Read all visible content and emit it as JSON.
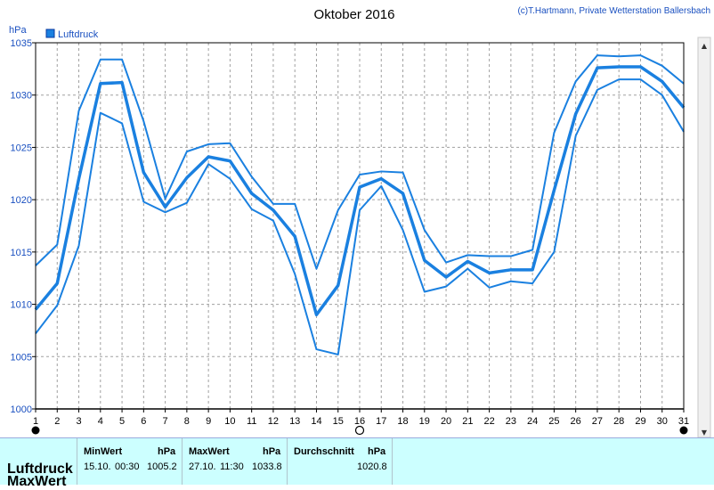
{
  "title": "Oktober 2016",
  "copyright": "(c)T.Hartmann, Private Wetterstation Ballersbach",
  "chart_data": {
    "type": "line",
    "ylabel": "hPa",
    "ylim": [
      1000,
      1035
    ],
    "yticks": [
      1000,
      1005,
      1010,
      1015,
      1020,
      1025,
      1030,
      1035
    ],
    "x": [
      1,
      2,
      3,
      4,
      5,
      6,
      7,
      8,
      9,
      10,
      11,
      12,
      13,
      14,
      15,
      16,
      17,
      18,
      19,
      20,
      21,
      22,
      23,
      24,
      25,
      26,
      27,
      28,
      29,
      30,
      31
    ],
    "legend": "Luftdruck",
    "legend_position": "top-left",
    "grid": true,
    "colors": {
      "line": "#1a80e0",
      "grid": "#a0a0a0",
      "axis_text": "#1a50c0"
    },
    "series": [
      {
        "name": "Luftdruck",
        "role": "max",
        "values": [
          1013.7,
          1015.7,
          1028.5,
          1033.4,
          1033.4,
          1027.5,
          1020.1,
          1024.6,
          1025.3,
          1025.4,
          1022.2,
          1019.6,
          1019.6,
          1013.4,
          1019.0,
          1022.4,
          1022.7,
          1022.6,
          1017.1,
          1014.0,
          1014.7,
          1014.6,
          1014.6,
          1015.2,
          1026.4,
          1031.3,
          1033.8,
          1033.7,
          1033.8,
          1032.8,
          1031.1
        ]
      },
      {
        "role": "mean",
        "values": [
          1009.5,
          1012.0,
          1022.0,
          1031.1,
          1031.2,
          1022.6,
          1019.3,
          1022.1,
          1024.1,
          1023.7,
          1020.6,
          1019.0,
          1016.5,
          1009.0,
          1011.8,
          1021.2,
          1022.0,
          1020.6,
          1014.2,
          1012.6,
          1014.1,
          1013.0,
          1013.3,
          1013.3,
          1020.9,
          1028.2,
          1032.6,
          1032.7,
          1032.7,
          1031.3,
          1028.8
        ]
      },
      {
        "role": "min",
        "values": [
          1007.2,
          1009.9,
          1015.6,
          1028.3,
          1027.3,
          1019.8,
          1018.8,
          1019.7,
          1023.4,
          1022.0,
          1019.1,
          1018.0,
          1012.9,
          1005.7,
          1005.2,
          1019.0,
          1021.3,
          1017.1,
          1011.2,
          1011.7,
          1013.4,
          1011.6,
          1012.2,
          1012.0,
          1015.0,
          1026.1,
          1030.5,
          1031.5,
          1031.5,
          1030.0,
          1026.5
        ]
      }
    ],
    "markers": {
      "filled": [
        1,
        31
      ],
      "open": [
        16
      ]
    }
  },
  "panel": {
    "row_label": "Luftdruck",
    "row_label2": "MaxWert",
    "min": {
      "header": "MinWert",
      "unit": "hPa",
      "date": "15.10.",
      "time": "00:30",
      "value": "1005.2"
    },
    "max": {
      "header": "MaxWert",
      "unit": "hPa",
      "date": "27.10.",
      "time": "11:30",
      "value": "1033.8"
    },
    "avg": {
      "header": "Durchschnitt",
      "unit": "hPa",
      "value": "1020.8"
    }
  }
}
